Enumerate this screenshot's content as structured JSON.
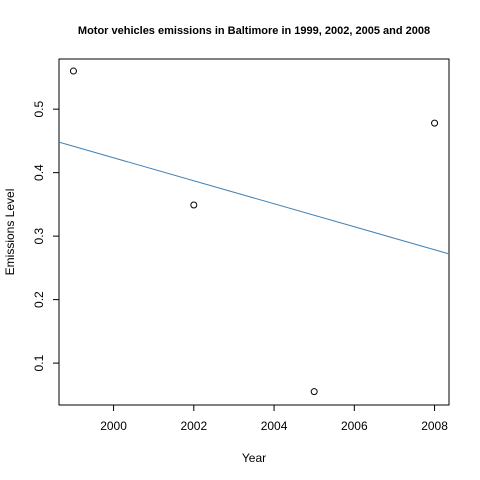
{
  "chart_data": {
    "type": "scatter",
    "title": "Motor vehicles emissions in Baltimore in 1999, 2002, 2005 and 2008",
    "xlabel": "Year",
    "ylabel": "Emissions Level",
    "xlim": [
      1998.64,
      2008.36
    ],
    "ylim": [
      0.034,
      0.579
    ],
    "x_ticks": [
      2000,
      2002,
      2004,
      2006,
      2008
    ],
    "y_ticks": [
      0.1,
      0.2,
      0.3,
      0.4,
      0.5
    ],
    "x_tick_labels": [
      "2000",
      "2002",
      "2004",
      "2006",
      "2008"
    ],
    "y_tick_labels": [
      "0.1",
      "0.2",
      "0.3",
      "0.4",
      "0.5"
    ],
    "points": [
      {
        "x": 1999,
        "y": 0.56
      },
      {
        "x": 2002,
        "y": 0.349
      },
      {
        "x": 2005,
        "y": 0.055
      },
      {
        "x": 2008,
        "y": 0.478
      }
    ],
    "fit_line": {
      "color": "#4682b4",
      "from": {
        "x": 1998.64,
        "y": 0.448
      },
      "to": {
        "x": 2008.36,
        "y": 0.272
      }
    },
    "grid": false,
    "legend": "none"
  }
}
